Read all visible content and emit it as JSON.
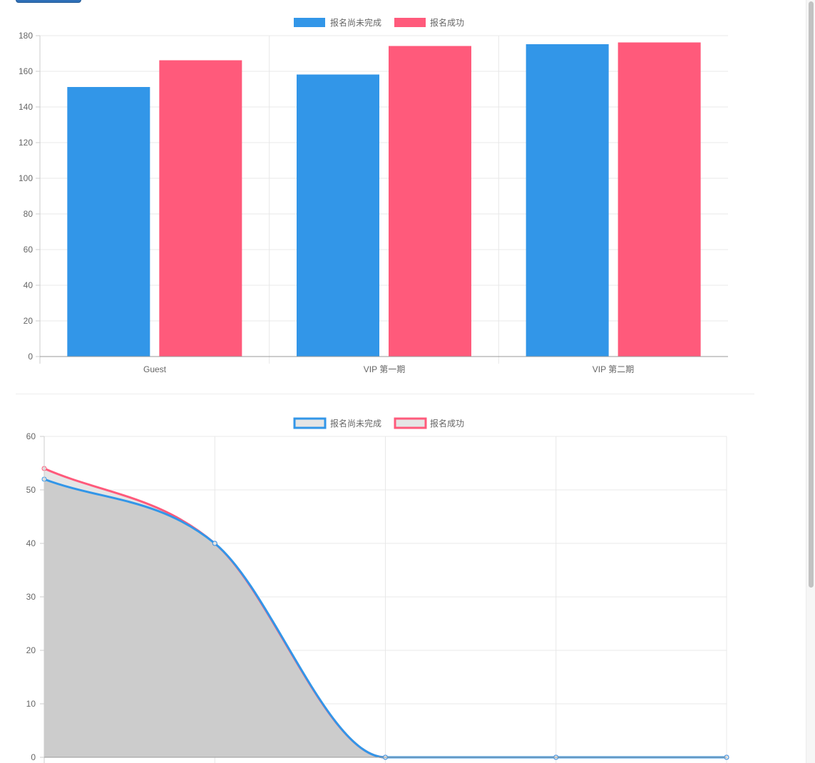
{
  "colors": {
    "blue": "#3296E8",
    "pink": "#FF5A7B",
    "area_fill": "#cccccc",
    "legend_box_fill": "#e5e5e5"
  },
  "chart_data": [
    {
      "type": "bar",
      "categories": [
        "Guest",
        "VIP 第一期",
        "VIP 第二期"
      ],
      "series": [
        {
          "name": "报名尚未完成",
          "color": "#3296E8",
          "values": [
            151,
            158,
            175
          ]
        },
        {
          "name": "报名成功",
          "color": "#FF5A7B",
          "values": [
            166,
            174,
            176
          ]
        }
      ],
      "ylim": [
        0,
        180
      ],
      "yticks": [
        0,
        20,
        40,
        60,
        80,
        100,
        120,
        140,
        160,
        180
      ],
      "legend": "top",
      "grid": true
    },
    {
      "type": "line",
      "x": [
        "",
        "",
        "",
        "",
        ""
      ],
      "series": [
        {
          "name": "报名尚未完成",
          "color": "#3296E8",
          "values": [
            52,
            40,
            0,
            0,
            0
          ]
        },
        {
          "name": "报名成功",
          "color": "#FF5A7B",
          "values": [
            54,
            40,
            0,
            0,
            0
          ]
        }
      ],
      "ylim": [
        0,
        60
      ],
      "yticks": [
        0,
        10,
        20,
        30,
        40,
        50,
        60
      ],
      "legend": "top",
      "grid": true,
      "fill": true
    }
  ]
}
